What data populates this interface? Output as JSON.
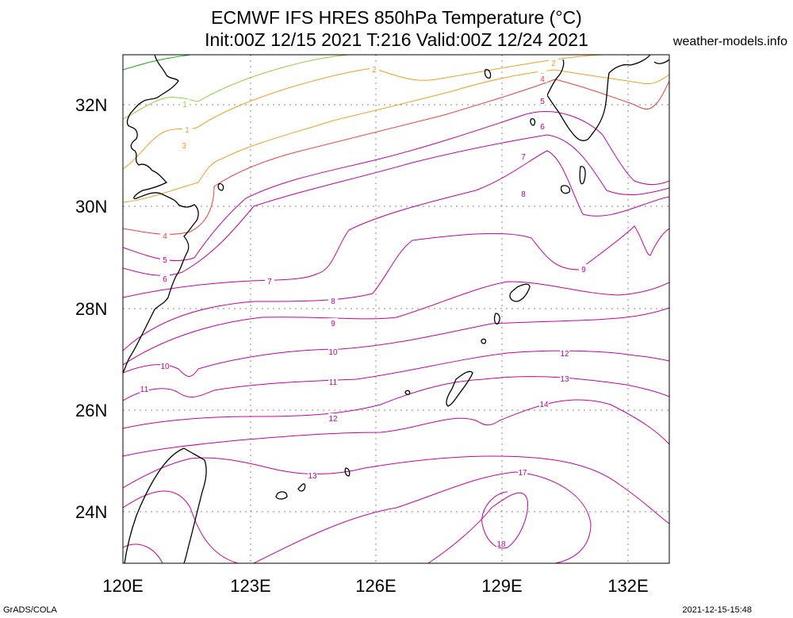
{
  "title": {
    "line1": "ECMWF IFS HRES 850hPa Temperature (°C)",
    "line2": "Init:00Z 12/15 2021 T:216 Valid:00Z 12/24 2021"
  },
  "site": "weather-models.info",
  "footer": {
    "left": "GrADS/COLA",
    "right": "2021-12-15-15:48"
  },
  "axes": {
    "lat_labels": [
      "32N",
      "30N",
      "28N",
      "26N",
      "24N"
    ],
    "lon_labels": [
      "120E",
      "123E",
      "126E",
      "129E",
      "132E"
    ]
  },
  "colors": {
    "coast": "#000000",
    "grid": "#888888",
    "cold_green": "#2db52d",
    "light_green": "#8fd13f",
    "orange": "#f0a020",
    "red": "#f04040",
    "magenta": "#cc0099"
  },
  "contour_labels": [
    "1",
    "1",
    "2",
    "2",
    "3",
    "3",
    "4",
    "4",
    "5",
    "5",
    "5",
    "6",
    "6",
    "7",
    "7",
    "8",
    "8",
    "9",
    "9",
    "10",
    "10",
    "11",
    "11",
    "12",
    "12",
    "13",
    "13",
    "14",
    "17",
    "18"
  ]
}
